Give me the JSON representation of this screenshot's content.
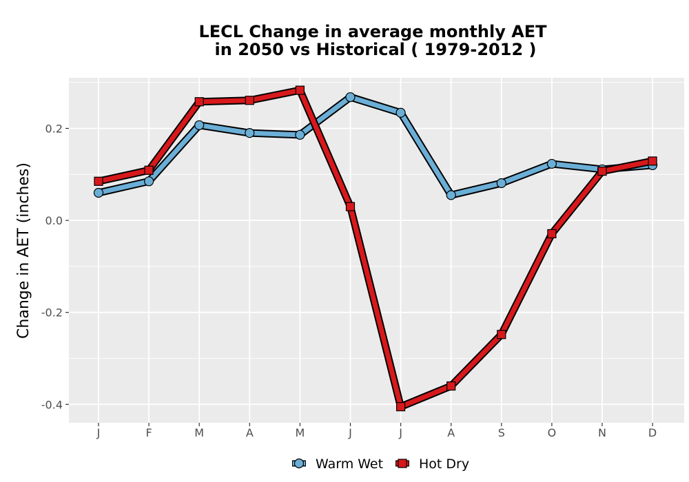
{
  "chart_data": {
    "type": "line",
    "title_line1": "LECL  Change in average monthly AET",
    "title_line2": "in 2050 vs Historical ( 1979-2012 )",
    "xlabel": "",
    "ylabel": "Change in AET (inches)",
    "categories": [
      "J",
      "F",
      "M",
      "A",
      "M",
      "J",
      "J",
      "A",
      "S",
      "O",
      "N",
      "D"
    ],
    "ylim": [
      -0.44,
      0.31
    ],
    "yticks": [
      -0.4,
      -0.2,
      0.0,
      0.2
    ],
    "ytick_labels": [
      "-0.4",
      "-0.2",
      "0.0",
      "0.2"
    ],
    "grid": true,
    "legend_position": "bottom",
    "series": [
      {
        "name": "Warm Wet",
        "marker": "circle",
        "color": "#6baed6",
        "values": [
          0.06,
          0.085,
          0.207,
          0.19,
          0.186,
          0.268,
          0.234,
          0.055,
          0.081,
          0.123,
          0.111,
          0.12
        ]
      },
      {
        "name": "Hot Dry",
        "marker": "square",
        "color": "#d7191c",
        "values": [
          0.085,
          0.109,
          0.258,
          0.261,
          0.283,
          0.03,
          -0.405,
          -0.36,
          -0.248,
          -0.029,
          0.107,
          0.129
        ]
      }
    ]
  },
  "colors": {
    "panel_background": "#ebebeb",
    "grid": "#ffffff",
    "outline": "#000000"
  }
}
